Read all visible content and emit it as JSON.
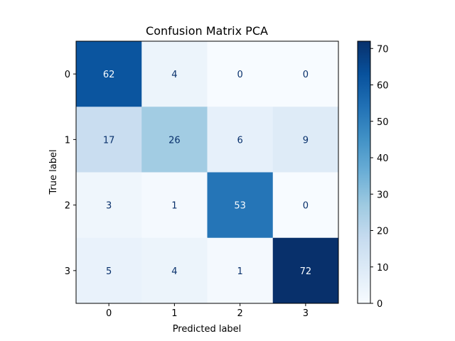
{
  "chart_data": {
    "type": "heatmap",
    "title": "Confusion Matrix PCA",
    "xlabel": "Predicted label",
    "ylabel": "True label",
    "x_categories": [
      "0",
      "1",
      "2",
      "3"
    ],
    "y_categories": [
      "0",
      "1",
      "2",
      "3"
    ],
    "matrix": [
      [
        62,
        4,
        0,
        0
      ],
      [
        17,
        26,
        6,
        9
      ],
      [
        3,
        1,
        53,
        0
      ],
      [
        5,
        4,
        1,
        72
      ]
    ],
    "colormap": "Blues",
    "colorbar_range": [
      0,
      72
    ],
    "colorbar_ticks": [
      "0",
      "10",
      "20",
      "30",
      "40",
      "50",
      "60",
      "70"
    ]
  }
}
